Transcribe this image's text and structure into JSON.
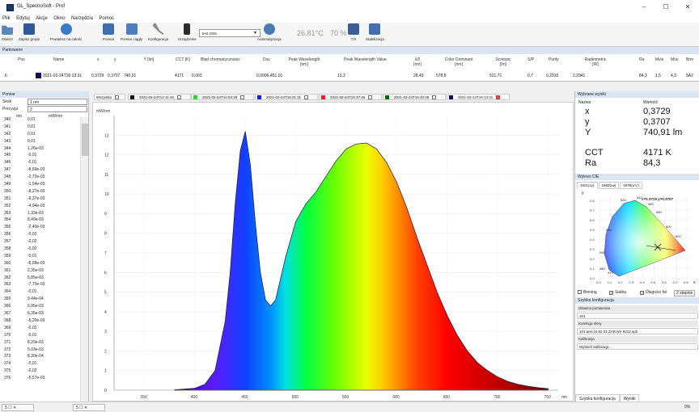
{
  "window": {
    "title": "GL_SpectroSoft - Prof",
    "minimize": "–",
    "maximize": "☐",
    "close": "✕"
  },
  "menu": [
    "Plik",
    "Edytuj",
    "Akcje",
    "Okno",
    "Narzędzia",
    "Pomoc"
  ],
  "toolbar": {
    "buttons": [
      {
        "label": "Otwórz",
        "icon": "folder-open-icon",
        "color": "#5b86b8"
      },
      {
        "label": "Zapisz grupę",
        "icon": "save-icon",
        "color": "#2d5a9a"
      },
      {
        "label": "Powiększ na całość",
        "icon": "zoom-icon",
        "color": "#3a7bc8"
      },
      {
        "label": "Pomiar",
        "icon": "measure-icon",
        "color": "#3c6fb0"
      },
      {
        "label": "Pomiar ciągły",
        "icon": "continuous-measure-icon",
        "color": "#4f7ec0"
      },
      {
        "label": "Konfiguracja",
        "icon": "tools-icon",
        "color": "#777777"
      },
      {
        "label": "Urządzenie",
        "icon": "device-icon",
        "color": "#2a2a2a"
      },
      {
        "label": "Automatyzacja",
        "icon": "automation-gear-icon",
        "color": "#4b7bb5"
      },
      {
        "label": "T,R",
        "icon": "tr-icon",
        "color": "#3a5f94"
      },
      {
        "label": "Stabilizacja",
        "icon": "stabilization-icon",
        "color": "#4070b0"
      }
    ],
    "device_value": "test 230v",
    "temperature": "26.81°C",
    "humidity": "70 %"
  },
  "results": {
    "header": "Parkowane",
    "columns": [
      "Pos",
      "Name",
      "x",
      "y",
      "Y [lm]",
      "CCT [K]",
      "Błąd chromatyczności",
      "Duv",
      "Peak Wavelength [nm]",
      "Peak Wavelength Value",
      "λ/2 [nm]",
      "Color Dominant [nm]",
      "Scotopic [lm]",
      "S/P",
      "Purity",
      "Radiometric [W]",
      "Ra",
      "Mvis",
      "Muv",
      "Bmr"
    ],
    "row": {
      "pos": "6",
      "name": "2021-02-24T16:13:31",
      "x": "0,3729",
      "y": "0,3707",
      "Y": "740,91",
      "cct": "4171",
      "chrom_err": "0,003",
      "duv": "0,0006..",
      "peak_wl": "451,01",
      "peak_val": "13,3",
      "half": "28,43",
      "dominant": "578,8",
      "scotopic": "521,71",
      "sp": "0,7",
      "purity": "0,2315",
      "radiometric": "2,2941",
      "ra": "84,3",
      "mvis": "1,5",
      "muv": "4,3",
      "bmr": "5A2",
      "swatch": "#10105a"
    }
  },
  "left_panel": {
    "title": "Pomiar",
    "step_label": "Skok",
    "step_value": "1 nm",
    "precision_label": "Precyzja",
    "precision_value": "2",
    "col_nm": "nm",
    "col_mw": "mW/nm",
    "rows": [
      [
        "340",
        "0,01"
      ],
      [
        "341",
        "0,01"
      ],
      [
        "342",
        "0,01"
      ],
      [
        "343",
        "0,01"
      ],
      [
        "344",
        "1,26e-03"
      ],
      [
        "345",
        "-0,01"
      ],
      [
        "346",
        "-0,01"
      ],
      [
        "347",
        "-8,69e-03"
      ],
      [
        "348",
        "-2,72e-03"
      ],
      [
        "349",
        "-1,54e-03"
      ],
      [
        "350",
        "-8,27e-03"
      ],
      [
        "351",
        "-9,37e-03"
      ],
      [
        "352",
        "-4,94e-03"
      ],
      [
        "353",
        "1,33e-03"
      ],
      [
        "354",
        "8,49e-03"
      ],
      [
        "355",
        "-2,40e-03"
      ],
      [
        "356",
        "-0,02"
      ],
      [
        "357",
        "-0,02"
      ],
      [
        "358",
        "-0,02"
      ],
      [
        "359",
        "-0,01"
      ],
      [
        "360",
        "-6,68e-03"
      ],
      [
        "361",
        "2,35e-03"
      ],
      [
        "362",
        "5,85e-03"
      ],
      [
        "363",
        "-7,70e-03"
      ],
      [
        "364",
        "-0,01"
      ],
      [
        "365",
        "9,44e-04"
      ],
      [
        "366",
        "6,95e-03"
      ],
      [
        "367",
        "6,35e-03"
      ],
      [
        "368",
        "-5,20e-03"
      ],
      [
        "369",
        "-0,02"
      ],
      [
        "370",
        "-0,01"
      ],
      [
        "371",
        "8,29e-03"
      ],
      [
        "372",
        "5,03e-03"
      ],
      [
        "373",
        "8,30e-04"
      ],
      [
        "374",
        "-0,01"
      ],
      [
        "375",
        "-0,02"
      ],
      [
        "376",
        "-5,57e-03"
      ]
    ]
  },
  "tabs": {
    "all_label": "Wszystko",
    "items": [
      {
        "label": "2021-02-24T14:11:46",
        "color": "#111111"
      },
      {
        "label": "2021-02-24T14:53:28",
        "color": "#22dd22"
      },
      {
        "label": "2021-02-24T15:31:11",
        "color": "#1a1aff"
      },
      {
        "label": "2021-02-24T15:37:46",
        "color": "#ff1a1a"
      },
      {
        "label": "2021-02-24T15:40:28",
        "color": "#0a6a0a"
      },
      {
        "label": "2021-02-24T16:13:31",
        "color": "#10105a"
      }
    ]
  },
  "chart_data": {
    "type": "area",
    "ylabel": "mW/nm",
    "xlabel": "nm",
    "xlim": [
      320,
      760
    ],
    "ylim": [
      0,
      14
    ],
    "xticks": [
      350,
      400,
      450,
      500,
      550,
      600,
      650,
      700,
      750
    ],
    "yticks": [
      0,
      1,
      2,
      3,
      4,
      5,
      6,
      7,
      8,
      9,
      10,
      11,
      12,
      13
    ],
    "fill": "visible-spectrum-gradient",
    "series": [
      {
        "x": [
          380,
          400,
          410,
          420,
          430,
          435,
          440,
          445,
          450,
          455,
          460,
          465,
          470,
          475,
          480,
          490,
          500,
          510,
          520,
          530,
          540,
          550,
          560,
          570,
          580,
          590,
          600,
          610,
          620,
          630,
          640,
          650,
          660,
          670,
          680,
          690,
          700,
          710,
          720,
          730,
          740,
          750
        ],
        "y": [
          0.02,
          0.1,
          0.3,
          1.0,
          3.5,
          6.0,
          9.5,
          12.2,
          13.2,
          11.5,
          8.5,
          6.0,
          4.6,
          4.3,
          4.6,
          6.8,
          8.6,
          9.5,
          10.1,
          10.9,
          11.7,
          12.3,
          12.55,
          12.6,
          12.3,
          11.6,
          10.6,
          9.3,
          7.8,
          6.4,
          5.0,
          3.8,
          2.8,
          2.0,
          1.4,
          1.0,
          0.68,
          0.45,
          0.3,
          0.2,
          0.13,
          0.08
        ]
      }
    ]
  },
  "right_panel": {
    "results_title": "Wybrane wyniki",
    "col_name": "Nazwa",
    "col_value": "Wartość",
    "values": [
      {
        "name": "x",
        "value": "0,3729"
      },
      {
        "name": "y",
        "value": "0,3707"
      },
      {
        "name": "Y",
        "value": "740,91 lm"
      },
      {
        "name": "CCT",
        "value": "4171 K"
      },
      {
        "name": "Ra",
        "value": "84,3"
      }
    ],
    "cie_title": "Wykres CIE",
    "cie_tabs": [
      "1931(xy)",
      "1960(uv)",
      "1976(u'v')"
    ],
    "cie_readout": "x=0.3729 y=0.3707",
    "cie_wavelengths": [
      "520",
      "540",
      "560",
      "580",
      "600",
      "620",
      "480",
      "490",
      "500",
      "470"
    ],
    "cie_axis_label_x": "x",
    "cie_axis_label_y": "y",
    "cie_xticks": [
      "0.0",
      "0.1",
      "0.2",
      "0.3",
      "0.4",
      "0.5",
      "0.6",
      "0.7",
      "0.8"
    ],
    "cie_yticks": [
      "0.0",
      "0.1",
      "0.2",
      "0.3",
      "0.4",
      "0.5",
      "0.6",
      "0.7",
      "0.8"
    ],
    "checks": [
      {
        "label": "Binning",
        "checked": false
      },
      {
        "label": "Siatka",
        "checked": true
      },
      {
        "label": "Długości fal",
        "checked": true
      },
      {
        "label": "2 stopnie",
        "checked": false
      }
    ],
    "config_title": "Szybka konfiguracja",
    "config_rows": [
      "Głowica pomiarowa",
      "101",
      "Korekcja sfery",
      "101.test 24 02 21.ZAR.NV 9212.sph",
      "Kalibracja",
      "Wybierz kalibrację..."
    ],
    "bottom_tabs": [
      "Szybka konfiguracja",
      "Wyniki"
    ]
  },
  "statusbar": {
    "items": [
      "5",
      "☐",
      "✕",
      "5",
      "☐",
      "✕"
    ],
    "progress": "0%"
  }
}
